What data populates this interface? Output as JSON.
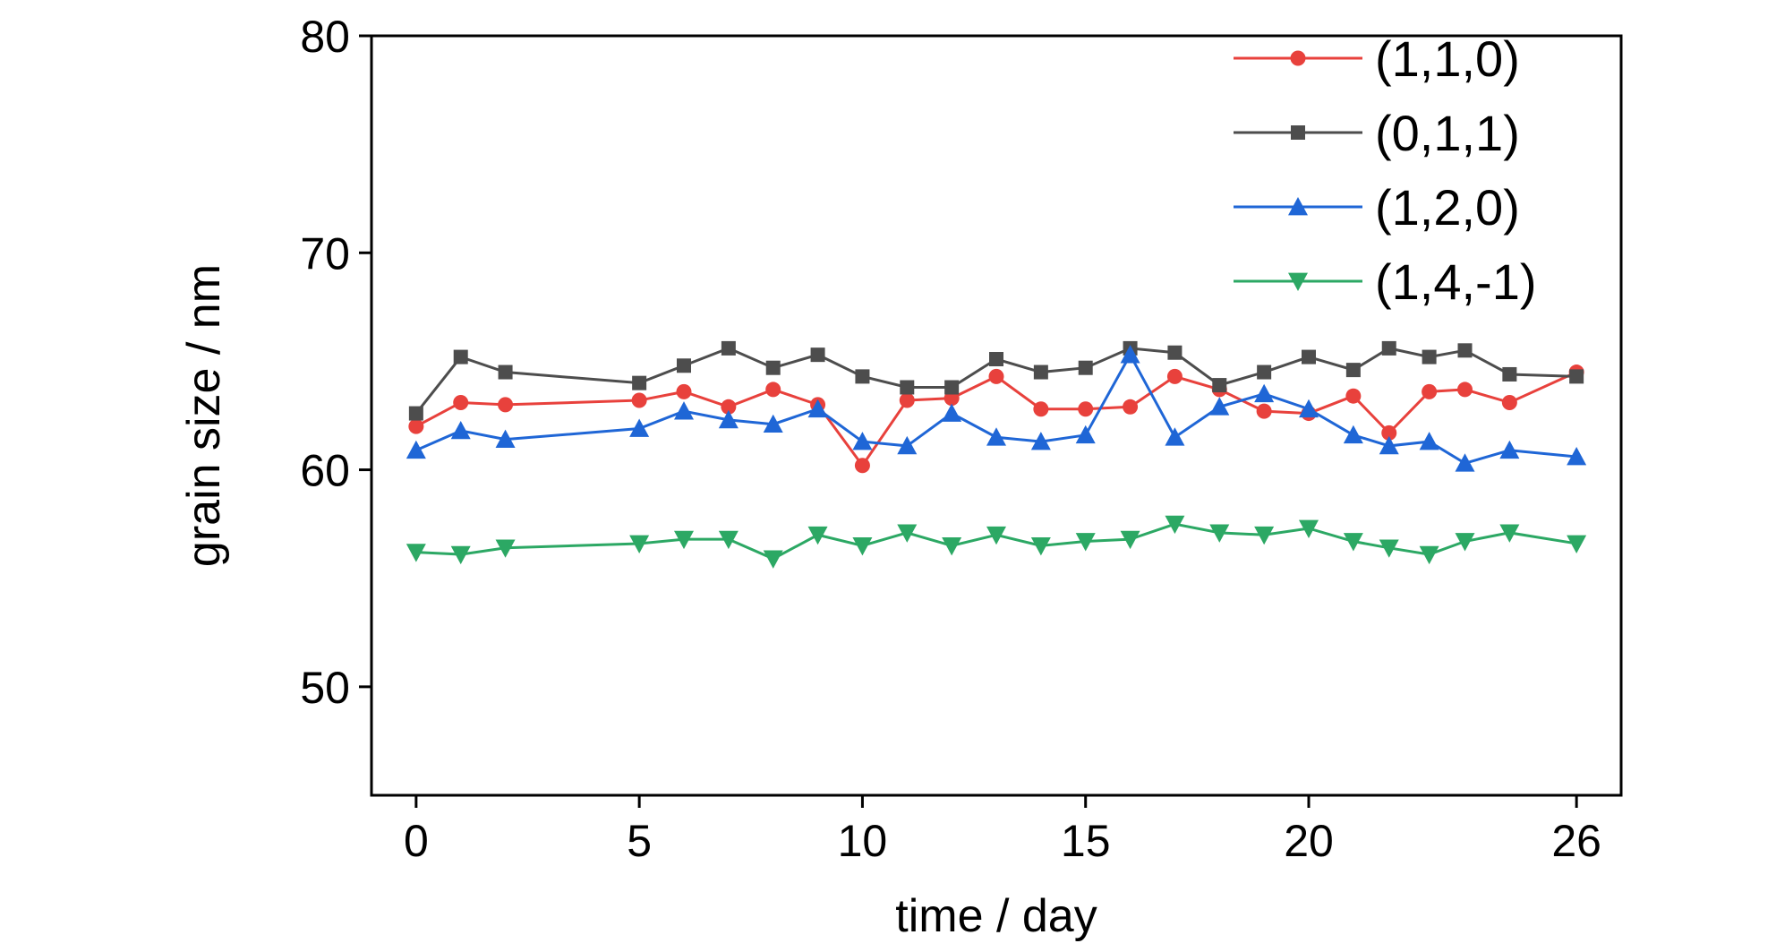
{
  "chart_data": {
    "type": "line",
    "xlabel": "time / day",
    "ylabel": "grain size / nm",
    "xlim": [
      -1,
      27
    ],
    "ylim": [
      45,
      80
    ],
    "xticks": [
      0,
      5,
      10,
      15,
      20,
      26
    ],
    "yticks": [
      50,
      60,
      70,
      80
    ],
    "grid": false,
    "legend_position": "top-right",
    "x": [
      0,
      1,
      2,
      5,
      6,
      7,
      8,
      9,
      10,
      11,
      12,
      13,
      14,
      15,
      16,
      17,
      18,
      19,
      20,
      21,
      21.8,
      22.7,
      23.5,
      24.5,
      26
    ],
    "series": [
      {
        "name": "(1,1,0)",
        "color": "#e8413c",
        "marker": "circle",
        "values": [
          62.0,
          63.1,
          63.0,
          63.2,
          63.6,
          62.9,
          63.7,
          63.0,
          60.2,
          63.2,
          63.3,
          64.3,
          62.8,
          62.8,
          62.9,
          64.3,
          63.7,
          62.7,
          62.6,
          63.4,
          61.7,
          63.6,
          63.7,
          63.1,
          64.5
        ]
      },
      {
        "name": "(0,1,1)",
        "color": "#4d4d4d",
        "marker": "square",
        "values": [
          62.6,
          65.2,
          64.5,
          64.0,
          64.8,
          65.6,
          64.7,
          65.3,
          64.3,
          63.8,
          63.8,
          65.1,
          64.5,
          64.7,
          65.6,
          65.4,
          63.9,
          64.5,
          65.2,
          64.6,
          65.6,
          65.2,
          65.5,
          64.4,
          64.3
        ]
      },
      {
        "name": "(1,2,0)",
        "color": "#1f66d6",
        "marker": "triangle-up",
        "values": [
          60.9,
          61.8,
          61.4,
          61.9,
          62.7,
          62.3,
          62.1,
          62.8,
          61.3,
          61.1,
          62.6,
          61.5,
          61.3,
          61.6,
          65.3,
          61.5,
          62.9,
          63.5,
          62.8,
          61.6,
          61.1,
          61.3,
          60.3,
          60.9,
          60.6
        ]
      },
      {
        "name": "(1,4,-1)",
        "color": "#2ca864",
        "marker": "triangle-down",
        "values": [
          56.2,
          56.1,
          56.4,
          56.6,
          56.8,
          56.8,
          55.9,
          57.0,
          56.5,
          57.1,
          56.5,
          57.0,
          56.5,
          56.7,
          56.8,
          57.5,
          57.1,
          57.0,
          57.3,
          56.7,
          56.4,
          56.1,
          56.7,
          57.1,
          56.6
        ]
      }
    ]
  }
}
